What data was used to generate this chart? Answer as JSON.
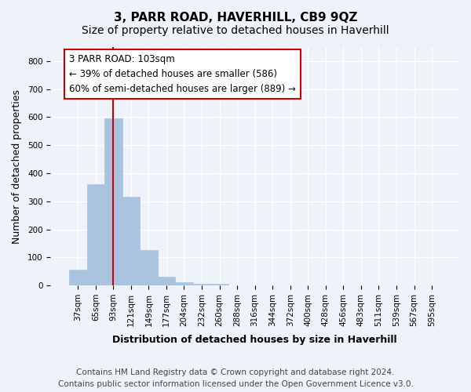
{
  "title": "3, PARR ROAD, HAVERHILL, CB9 9QZ",
  "subtitle": "Size of property relative to detached houses in Haverhill",
  "xlabel": "Distribution of detached houses by size in Haverhill",
  "ylabel": "Number of detached properties",
  "footer_line1": "Contains HM Land Registry data © Crown copyright and database right 2024.",
  "footer_line2": "Contains public sector information licensed under the Open Government Licence v3.0.",
  "bins": [
    "37sqm",
    "65sqm",
    "93sqm",
    "121sqm",
    "149sqm",
    "177sqm",
    "204sqm",
    "232sqm",
    "260sqm",
    "288sqm",
    "316sqm",
    "344sqm",
    "372sqm",
    "400sqm",
    "428sqm",
    "456sqm",
    "483sqm",
    "511sqm",
    "539sqm",
    "567sqm",
    "595sqm"
  ],
  "values": [
    55,
    360,
    595,
    315,
    125,
    30,
    10,
    5,
    5,
    0,
    0,
    0,
    0,
    0,
    0,
    0,
    0,
    0,
    0,
    0,
    0
  ],
  "bar_color": "#aac4e0",
  "bar_edge_color": "#aac4e0",
  "highlight_color": "#cc0000",
  "highlight_bin_index": 2,
  "annotation_text_line1": "3 PARR ROAD: 103sqm",
  "annotation_text_line2": "← 39% of detached houses are smaller (586)",
  "annotation_text_line3": "60% of semi-detached houses are larger (889) →",
  "ylim": [
    0,
    850
  ],
  "yticks": [
    0,
    100,
    200,
    300,
    400,
    500,
    600,
    700,
    800
  ],
  "bg_color": "#eef2f9",
  "grid_color": "#ffffff",
  "annotation_box_color": "#ffffff",
  "annotation_box_edge": "#cc0000",
  "title_fontsize": 11,
  "subtitle_fontsize": 10,
  "axis_label_fontsize": 9,
  "tick_fontsize": 7.5,
  "annotation_fontsize": 8.5,
  "footer_fontsize": 7.5
}
